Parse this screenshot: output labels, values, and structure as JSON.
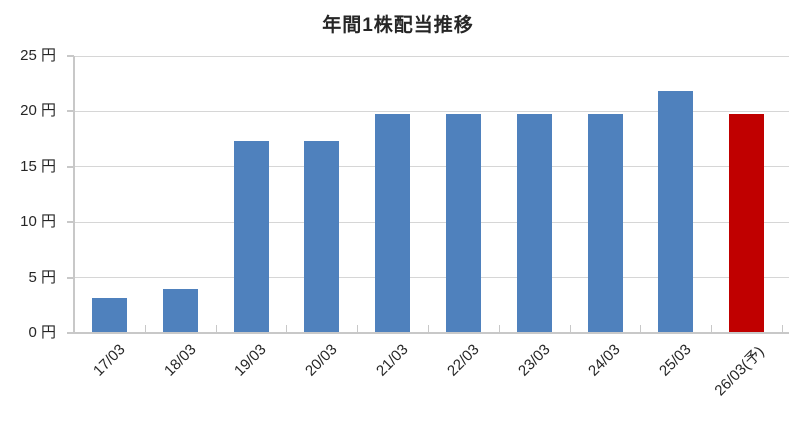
{
  "chart_data": {
    "type": "bar",
    "title": "年間1株配当推移",
    "categories": [
      "17/03",
      "18/03",
      "19/03",
      "20/03",
      "21/03",
      "22/03",
      "23/03",
      "24/03",
      "25/03",
      "26/03(予)"
    ],
    "values": [
      3.2,
      4.0,
      17.3,
      17.3,
      19.8,
      19.8,
      19.8,
      19.8,
      21.8,
      19.8
    ],
    "unit": "円",
    "xlabel": "",
    "ylabel": "",
    "ylim": [
      0,
      25
    ],
    "ytick_interval": 5,
    "ytick_labels": [
      "0 円",
      "5 円",
      "10 円",
      "15 円",
      "20 円",
      "25 円"
    ],
    "grid": true,
    "legend": "none",
    "bar_default_color": "#4F81BD",
    "bar_highlight_color": "#C00000",
    "highlight_index": 9
  },
  "colors": {
    "background": "#FFFFFF",
    "gridline": "#D6D6D6",
    "axis": "#C8C8C8",
    "text": "#262626"
  }
}
